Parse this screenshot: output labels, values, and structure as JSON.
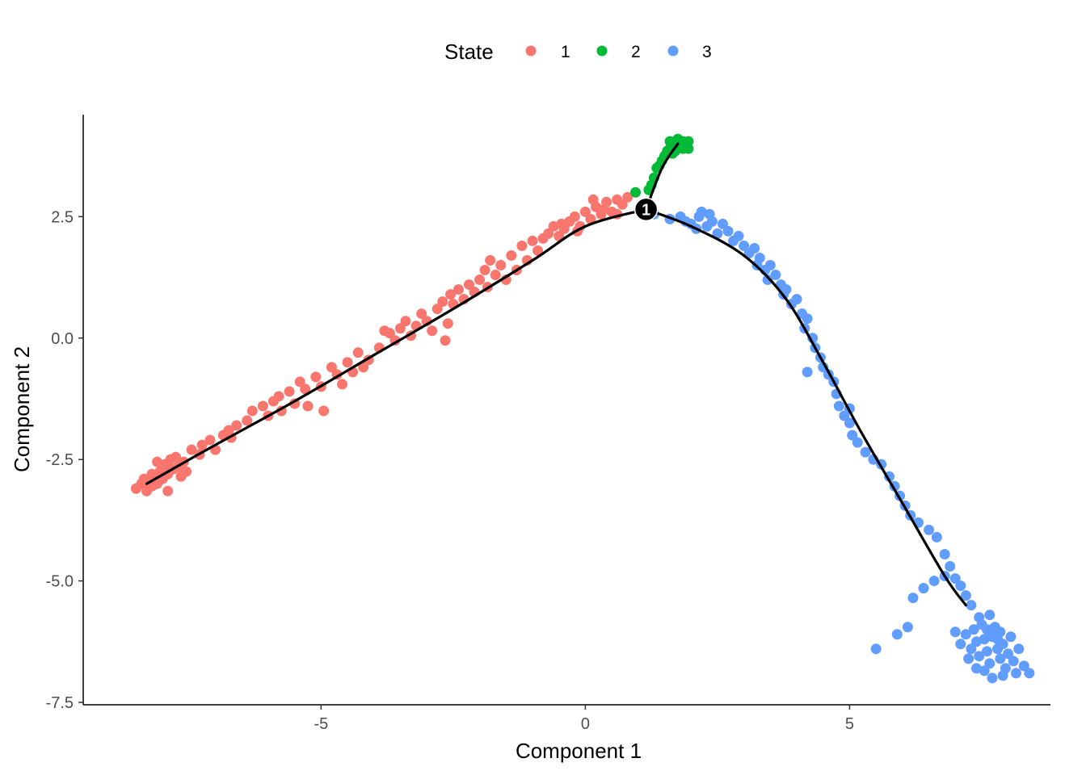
{
  "chart_data": {
    "type": "scatter",
    "title": "",
    "xlabel": "Component 1",
    "ylabel": "Component 2",
    "xlim": [
      -9.5,
      8.8
    ],
    "ylim": [
      -7.55,
      4.6
    ],
    "x_ticks": [
      {
        "value": -5,
        "label": "-5"
      },
      {
        "value": 0,
        "label": "0"
      },
      {
        "value": 5,
        "label": "5"
      }
    ],
    "y_ticks": [
      {
        "value": 2.5,
        "label": "2.5"
      },
      {
        "value": 0,
        "label": "0.0"
      },
      {
        "value": -2.5,
        "label": "-2.5"
      },
      {
        "value": -5,
        "label": "-5.0"
      },
      {
        "value": -7.5,
        "label": "-7.5"
      }
    ],
    "grid": false,
    "legend": {
      "title": "State",
      "position": "top",
      "entries": [
        {
          "label": "1",
          "color": "#F8766D"
        },
        {
          "label": "2",
          "color": "#00BA38"
        },
        {
          "label": "3",
          "color": "#619CFF"
        }
      ]
    },
    "trajectory": {
      "color": "#000000",
      "segments": [
        [
          [
            -8.3,
            -3.0
          ],
          [
            -7.0,
            -2.2
          ],
          [
            -5.5,
            -1.3
          ],
          [
            -4.0,
            -0.35
          ],
          [
            -2.5,
            0.6
          ],
          [
            -1.0,
            1.6
          ],
          [
            0.0,
            2.3
          ],
          [
            1.15,
            2.65
          ]
        ],
        [
          [
            1.15,
            2.65
          ],
          [
            1.45,
            3.5
          ],
          [
            1.75,
            4.0
          ]
        ],
        [
          [
            1.15,
            2.65
          ],
          [
            2.0,
            2.3
          ],
          [
            3.0,
            1.7
          ],
          [
            3.8,
            0.8
          ],
          [
            4.5,
            -0.5
          ],
          [
            5.2,
            -1.9
          ],
          [
            6.0,
            -3.4
          ],
          [
            6.8,
            -4.9
          ],
          [
            7.2,
            -5.5
          ]
        ]
      ]
    },
    "branch_points": [
      {
        "x": 1.15,
        "y": 2.65,
        "label": "1"
      }
    ],
    "series": [
      {
        "state": "1",
        "color": "#F8766D",
        "points": [
          [
            -8.5,
            -3.1
          ],
          [
            -8.4,
            -3.0
          ],
          [
            -8.3,
            -3.15
          ],
          [
            -8.25,
            -2.95
          ],
          [
            -8.2,
            -3.05
          ],
          [
            -8.15,
            -2.85
          ],
          [
            -8.1,
            -3.0
          ],
          [
            -8.05,
            -2.75
          ],
          [
            -8.0,
            -2.9
          ],
          [
            -7.95,
            -2.6
          ],
          [
            -7.9,
            -2.8
          ],
          [
            -7.85,
            -2.5
          ],
          [
            -7.8,
            -2.7
          ],
          [
            -7.75,
            -2.45
          ],
          [
            -7.9,
            -3.15
          ],
          [
            -8.35,
            -2.9
          ],
          [
            -8.0,
            -2.65
          ],
          [
            -7.7,
            -2.65
          ],
          [
            -7.65,
            -2.85
          ],
          [
            -7.6,
            -2.55
          ],
          [
            -7.55,
            -2.75
          ],
          [
            -8.1,
            -2.55
          ],
          [
            -8.2,
            -2.8
          ],
          [
            -7.45,
            -2.3
          ],
          [
            -7.3,
            -2.4
          ],
          [
            -7.25,
            -2.2
          ],
          [
            -7.1,
            -2.1
          ],
          [
            -7.0,
            -2.3
          ],
          [
            -6.85,
            -2.0
          ],
          [
            -6.75,
            -1.9
          ],
          [
            -6.6,
            -1.8
          ],
          [
            -6.7,
            -2.05
          ],
          [
            -6.4,
            -1.7
          ],
          [
            -6.3,
            -1.5
          ],
          [
            -6.1,
            -1.4
          ],
          [
            -6.0,
            -1.6
          ],
          [
            -5.9,
            -1.3
          ],
          [
            -5.8,
            -1.2
          ],
          [
            -5.75,
            -1.5
          ],
          [
            -5.6,
            -1.1
          ],
          [
            -5.5,
            -1.35
          ],
          [
            -5.4,
            -0.9
          ],
          [
            -5.3,
            -1.05
          ],
          [
            -5.25,
            -1.4
          ],
          [
            -5.1,
            -0.8
          ],
          [
            -5.0,
            -1.0
          ],
          [
            -4.95,
            -1.5
          ],
          [
            -4.8,
            -0.6
          ],
          [
            -4.7,
            -0.75
          ],
          [
            -4.6,
            -0.95
          ],
          [
            -4.5,
            -0.5
          ],
          [
            -4.4,
            -0.7
          ],
          [
            -4.3,
            -0.3
          ],
          [
            -4.2,
            -0.6
          ],
          [
            -4.1,
            -0.45
          ],
          [
            -3.9,
            -0.2
          ],
          [
            -3.8,
            0.15
          ],
          [
            -3.7,
            0.1
          ],
          [
            -3.6,
            -0.05
          ],
          [
            -3.5,
            0.2
          ],
          [
            -3.4,
            0.35
          ],
          [
            -3.3,
            0.05
          ],
          [
            -3.2,
            0.25
          ],
          [
            -3.1,
            0.5
          ],
          [
            -3.0,
            0.35
          ],
          [
            -2.9,
            0.15
          ],
          [
            -2.8,
            0.6
          ],
          [
            -2.7,
            0.75
          ],
          [
            -2.65,
            -0.05
          ],
          [
            -2.6,
            0.3
          ],
          [
            -2.55,
            0.9
          ],
          [
            -2.5,
            0.7
          ],
          [
            -2.4,
            1.0
          ],
          [
            -2.3,
            0.8
          ],
          [
            -2.2,
            1.1
          ],
          [
            -2.1,
            0.95
          ],
          [
            -2.0,
            1.2
          ],
          [
            -1.9,
            1.4
          ],
          [
            -1.85,
            1.05
          ],
          [
            -1.8,
            1.6
          ],
          [
            -1.7,
            1.3
          ],
          [
            -1.6,
            1.5
          ],
          [
            -1.5,
            1.2
          ],
          [
            -1.4,
            1.7
          ],
          [
            -1.3,
            1.4
          ],
          [
            -1.2,
            1.9
          ],
          [
            -1.1,
            1.6
          ],
          [
            -1.0,
            2.0
          ],
          [
            -0.9,
            1.8
          ],
          [
            -0.8,
            2.05
          ],
          [
            -0.7,
            2.15
          ],
          [
            -0.6,
            2.3
          ],
          [
            -0.5,
            2.1
          ],
          [
            -0.4,
            2.25
          ],
          [
            -0.3,
            2.4
          ],
          [
            -0.2,
            2.5
          ],
          [
            -0.1,
            2.3
          ],
          [
            0.0,
            2.6
          ],
          [
            0.1,
            2.45
          ],
          [
            0.2,
            2.7
          ],
          [
            0.3,
            2.55
          ],
          [
            0.4,
            2.8
          ],
          [
            0.5,
            2.6
          ],
          [
            0.6,
            2.85
          ],
          [
            0.7,
            2.75
          ],
          [
            0.8,
            2.9
          ],
          [
            0.6,
            2.55
          ],
          [
            0.35,
            2.65
          ],
          [
            0.15,
            2.85
          ],
          [
            -0.15,
            2.2
          ],
          [
            -0.45,
            2.35
          ]
        ]
      },
      {
        "state": "2",
        "color": "#00BA38",
        "points": [
          [
            0.95,
            3.0
          ],
          [
            1.2,
            3.05
          ],
          [
            1.25,
            3.15
          ],
          [
            1.3,
            3.3
          ],
          [
            1.35,
            3.5
          ],
          [
            1.4,
            3.55
          ],
          [
            1.45,
            3.65
          ],
          [
            1.5,
            3.75
          ],
          [
            1.55,
            3.85
          ],
          [
            1.6,
            3.9
          ],
          [
            1.65,
            4.0
          ],
          [
            1.7,
            4.05
          ],
          [
            1.75,
            3.95
          ],
          [
            1.8,
            4.05
          ],
          [
            1.85,
            3.9
          ],
          [
            1.9,
            4.0
          ],
          [
            1.95,
            4.05
          ],
          [
            1.6,
            4.05
          ],
          [
            1.7,
            3.85
          ],
          [
            1.75,
            4.1
          ],
          [
            1.85,
            4.05
          ],
          [
            1.95,
            3.9
          ],
          [
            1.65,
            3.8
          ]
        ]
      },
      {
        "state": "3",
        "color": "#619CFF",
        "points": [
          [
            1.3,
            2.55
          ],
          [
            1.6,
            2.45
          ],
          [
            1.8,
            2.5
          ],
          [
            1.9,
            2.4
          ],
          [
            2.0,
            2.35
          ],
          [
            2.1,
            2.25
          ],
          [
            2.15,
            2.5
          ],
          [
            2.2,
            2.6
          ],
          [
            2.3,
            2.3
          ],
          [
            2.35,
            2.55
          ],
          [
            2.4,
            2.4
          ],
          [
            2.5,
            2.15
          ],
          [
            2.6,
            2.35
          ],
          [
            2.7,
            2.2
          ],
          [
            2.8,
            2.0
          ],
          [
            2.9,
            2.1
          ],
          [
            3.0,
            1.9
          ],
          [
            3.1,
            1.75
          ],
          [
            3.2,
            1.85
          ],
          [
            3.25,
            1.5
          ],
          [
            3.3,
            1.65
          ],
          [
            3.4,
            1.4
          ],
          [
            3.45,
            1.2
          ],
          [
            3.5,
            1.5
          ],
          [
            3.6,
            1.3
          ],
          [
            3.7,
            1.1
          ],
          [
            3.75,
            0.9
          ],
          [
            3.8,
            1.0
          ],
          [
            3.9,
            0.7
          ],
          [
            4.0,
            0.8
          ],
          [
            4.1,
            0.5
          ],
          [
            4.15,
            0.2
          ],
          [
            4.2,
            0.4
          ],
          [
            4.3,
            0.0
          ],
          [
            4.35,
            -0.2
          ],
          [
            4.45,
            -0.4
          ],
          [
            4.5,
            -0.6
          ],
          [
            4.6,
            -0.75
          ],
          [
            4.7,
            -0.9
          ],
          [
            4.75,
            -1.15
          ],
          [
            4.8,
            -1.4
          ],
          [
            4.9,
            -1.6
          ],
          [
            5.0,
            -1.75
          ],
          [
            5.05,
            -2.0
          ],
          [
            5.15,
            -2.15
          ],
          [
            5.3,
            -2.35
          ],
          [
            5.45,
            -2.5
          ],
          [
            5.6,
            -2.6
          ],
          [
            5.75,
            -2.85
          ],
          [
            5.85,
            -3.05
          ],
          [
            5.95,
            -3.25
          ],
          [
            6.05,
            -3.45
          ],
          [
            6.15,
            -3.65
          ],
          [
            6.3,
            -3.8
          ],
          [
            6.5,
            -3.95
          ],
          [
            6.65,
            -4.1
          ],
          [
            6.8,
            -4.45
          ],
          [
            6.9,
            -4.7
          ],
          [
            7.0,
            -4.95
          ],
          [
            7.1,
            -5.1
          ],
          [
            7.2,
            -5.3
          ],
          [
            7.3,
            -5.5
          ],
          [
            6.8,
            -4.9
          ],
          [
            6.6,
            -5.0
          ],
          [
            6.4,
            -5.15
          ],
          [
            6.2,
            -5.35
          ],
          [
            5.9,
            -6.1
          ],
          [
            5.5,
            -6.4
          ],
          [
            6.1,
            -5.95
          ],
          [
            5.0,
            -1.45
          ],
          [
            4.2,
            -0.7
          ],
          [
            7.0,
            -6.05
          ],
          [
            7.1,
            -6.3
          ],
          [
            7.2,
            -6.1
          ],
          [
            7.3,
            -6.4
          ],
          [
            7.35,
            -6.0
          ],
          [
            7.4,
            -6.25
          ],
          [
            7.45,
            -6.55
          ],
          [
            7.5,
            -5.9
          ],
          [
            7.55,
            -6.2
          ],
          [
            7.6,
            -6.45
          ],
          [
            7.65,
            -6.7
          ],
          [
            7.7,
            -6.15
          ],
          [
            7.75,
            -5.95
          ],
          [
            7.8,
            -6.4
          ],
          [
            7.85,
            -6.6
          ],
          [
            7.9,
            -6.3
          ],
          [
            7.95,
            -6.8
          ],
          [
            8.0,
            -6.5
          ],
          [
            8.05,
            -6.15
          ],
          [
            8.1,
            -6.65
          ],
          [
            8.2,
            -6.4
          ],
          [
            8.3,
            -6.75
          ],
          [
            8.4,
            -6.9
          ],
          [
            7.55,
            -6.85
          ],
          [
            7.7,
            -7.0
          ],
          [
            7.45,
            -5.75
          ],
          [
            7.65,
            -5.7
          ],
          [
            7.85,
            -6.05
          ],
          [
            7.25,
            -6.6
          ],
          [
            7.4,
            -6.8
          ],
          [
            7.9,
            -6.95
          ],
          [
            8.15,
            -6.9
          ],
          [
            7.6,
            -6.0
          ],
          [
            7.8,
            -6.2
          ]
        ]
      }
    ]
  }
}
